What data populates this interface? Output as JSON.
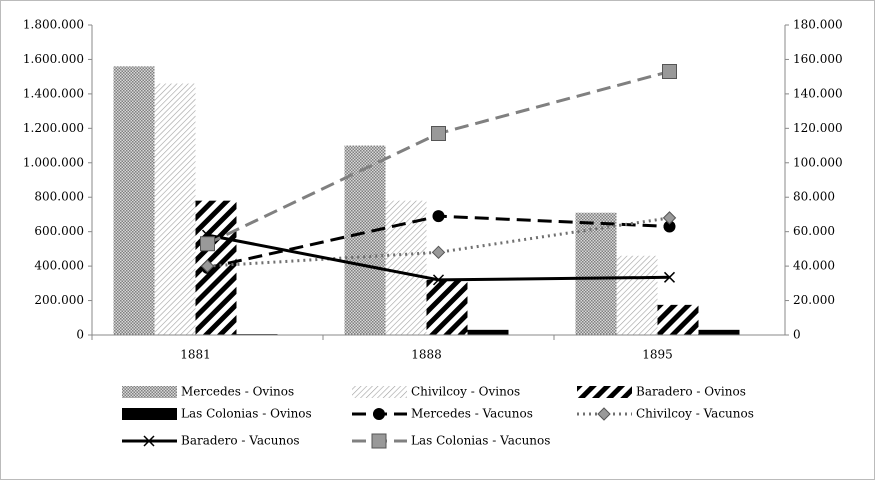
{
  "chart_data": {
    "type": "bar-line",
    "categories": [
      "1881",
      "1888",
      "1895"
    ],
    "series": [
      {
        "name": "Mercedes - Ovinos",
        "type": "bar",
        "color": "#808080",
        "pattern": "dots",
        "values": [
          1560000,
          1100000,
          710000
        ]
      },
      {
        "name": "Chivilcoy - Ovinos",
        "type": "bar",
        "color": "#a0a0a0",
        "pattern": "thin-hatch",
        "values": [
          1460000,
          780000,
          460000
        ]
      },
      {
        "name": "Baradero - Ovinos",
        "type": "bar",
        "color": "#000000",
        "pattern": "thick-hatch",
        "values": [
          780000,
          320000,
          175000
        ]
      },
      {
        "name": "Las Colonias - Ovinos",
        "type": "bar",
        "color": "#000000",
        "pattern": "solid",
        "values": [
          5000,
          30000,
          30000
        ]
      },
      {
        "name": "Mercedes - Vacunos",
        "type": "line",
        "axis": "y2",
        "color": "#000000",
        "style": "dash",
        "marker": "circle",
        "values": [
          39000,
          69000,
          63000
        ]
      },
      {
        "name": "Chivilcoy - Vacunos",
        "type": "line",
        "axis": "y2",
        "color": "#707070",
        "style": "dot",
        "marker": "diamond",
        "values": [
          40000,
          48000,
          68000
        ]
      },
      {
        "name": "Baradero - Vacunos",
        "type": "line",
        "axis": "y2",
        "color": "#000000",
        "style": "solid",
        "marker": "x",
        "values": [
          58000,
          32000,
          33500
        ]
      },
      {
        "name": "Las Colonias - Vacunos",
        "type": "line",
        "axis": "y2",
        "color": "#808080",
        "style": "dash",
        "marker": "square",
        "values": [
          53000,
          117000,
          153000
        ]
      }
    ],
    "ylim": [
      0,
      1800000
    ],
    "yticks": [
      0,
      {
        "value": 200000,
        "label": "200.000"
      },
      {
        "value": 400000,
        "label": "400.000"
      },
      {
        "value": 600000,
        "label": "600.000"
      },
      {
        "value": 800000,
        "label": "800.000"
      },
      {
        "value": 1000000,
        "label": "1.000.000"
      },
      {
        "value": 1200000,
        "label": "1.200.000"
      },
      {
        "value": 1400000,
        "label": "1.400.000"
      },
      {
        "value": 1600000,
        "label": "1.600.000"
      },
      {
        "value": 1800000,
        "label": "1.800.000"
      }
    ],
    "y2lim": [
      0,
      180000
    ],
    "y2ticks": [
      0,
      {
        "value": 20000,
        "label": "20.000"
      },
      {
        "value": 40000,
        "label": "40.000"
      },
      {
        "value": 60000,
        "label": "60.000"
      },
      {
        "value": 80000,
        "label": "80.000"
      },
      {
        "value": 100000,
        "label": "100.000"
      },
      {
        "value": 120000,
        "label": "120.000"
      },
      {
        "value": 140000,
        "label": "140.000"
      },
      {
        "value": 160000,
        "label": "160.000"
      },
      {
        "value": 180000,
        "label": "180.000"
      }
    ],
    "grid": false
  }
}
